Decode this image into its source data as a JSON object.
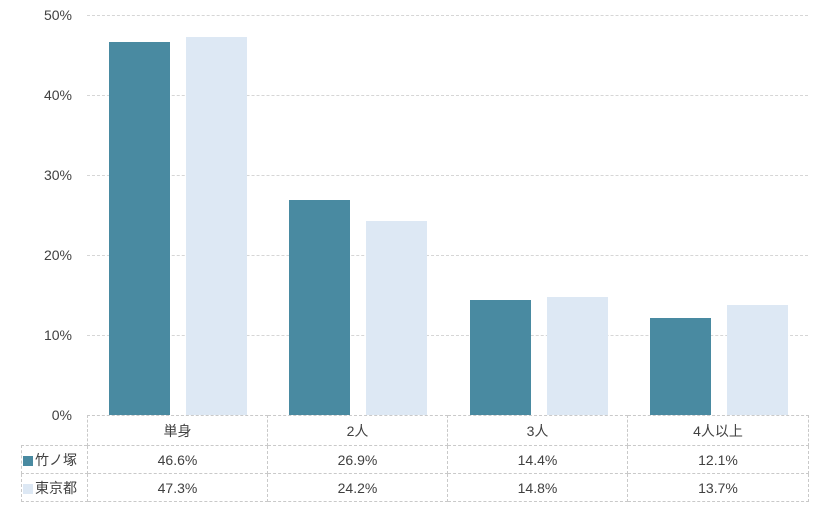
{
  "chart_data": {
    "type": "bar",
    "title": "",
    "categories": [
      "単身",
      "2人",
      "3人",
      "4人以上"
    ],
    "series": [
      {
        "name": "竹ノ塚",
        "color": "#498AA1",
        "values": [
          46.6,
          26.9,
          14.4,
          12.1
        ]
      },
      {
        "name": "東京都",
        "color": "#DDE8F4",
        "values": [
          47.3,
          24.2,
          14.8,
          13.7
        ]
      }
    ],
    "ylim": [
      0,
      50
    ],
    "yticks": [
      0,
      10,
      20,
      30,
      40,
      50
    ],
    "ytick_labels": [
      "0%",
      "10%",
      "20%",
      "30%",
      "40%",
      "50%"
    ],
    "grid": true,
    "gridline_style": "dashed",
    "legend_position": "table-left-column",
    "value_suffix": "%"
  },
  "table": {
    "header_labels": [
      "単身",
      "2人",
      "3人",
      "4人以上"
    ],
    "rows": [
      {
        "legend": "竹ノ塚",
        "swatch_color": "#498AA1",
        "values": [
          "46.6%",
          "26.9%",
          "14.4%",
          "12.1%"
        ]
      },
      {
        "legend": "東京都",
        "swatch_color": "#DDE8F4",
        "values": [
          "47.3%",
          "24.2%",
          "14.8%",
          "13.7%"
        ]
      }
    ]
  },
  "colors": {
    "series_takenotsuka": "#498AA1",
    "series_tokyo": "#DDE8F4",
    "gridline": "#D6D6D6",
    "table_border": "#C9C9C9",
    "text": "#404040",
    "background": "#FFFFFF"
  }
}
